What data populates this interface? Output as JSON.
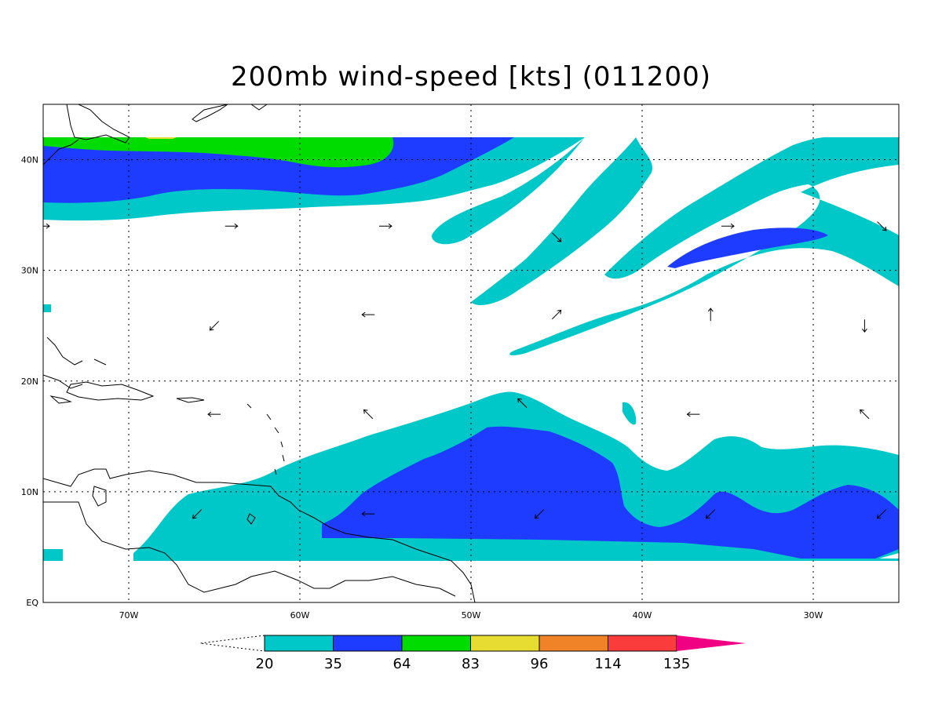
{
  "title": "200mb wind-speed [kts] (011200)",
  "map": {
    "lon_range": [
      -75,
      -25
    ],
    "lat_range": [
      0,
      45
    ],
    "x_ticks": [
      {
        "lon": -70,
        "label": "70W"
      },
      {
        "lon": -60,
        "label": "60W"
      },
      {
        "lon": -50,
        "label": "50W"
      },
      {
        "lon": -40,
        "label": "40W"
      },
      {
        "lon": -30,
        "label": "30W"
      }
    ],
    "y_ticks": [
      {
        "lat": 0,
        "label": "EQ"
      },
      {
        "lat": 10,
        "label": "10N"
      },
      {
        "lat": 20,
        "label": "20N"
      },
      {
        "lat": 30,
        "label": "30N"
      },
      {
        "lat": 40,
        "label": "40N"
      }
    ],
    "gridlines": "dotted",
    "colors": {
      "c20": "#00c8c8",
      "c35": "#1e3cff",
      "c64": "#00dc00",
      "c83": "#e6dc32",
      "c96": "#f08228",
      "c114": "#fa3c3c",
      "c135": "#f00082"
    }
  },
  "colorbar": {
    "levels": [
      "20",
      "35",
      "64",
      "83",
      "96",
      "114",
      "135"
    ],
    "colors": [
      "#00c8c8",
      "#1e3cff",
      "#00dc00",
      "#e6dc32",
      "#f08228",
      "#fa3c3c",
      "#f00082"
    ]
  },
  "wind_arrows": [
    {
      "lon": -75,
      "lat": 34,
      "dir": "east"
    },
    {
      "lon": -64,
      "lat": 34,
      "dir": "east"
    },
    {
      "lon": -55,
      "lat": 34,
      "dir": "east"
    },
    {
      "lon": -45,
      "lat": 33,
      "dir": "southeast"
    },
    {
      "lon": -35,
      "lat": 34,
      "dir": "east"
    },
    {
      "lon": -26,
      "lat": 34,
      "dir": "southeast"
    },
    {
      "lon": -65,
      "lat": 25,
      "dir": "southwest"
    },
    {
      "lon": -56,
      "lat": 26,
      "dir": "west"
    },
    {
      "lon": -45,
      "lat": 26,
      "dir": "northeast"
    },
    {
      "lon": -36,
      "lat": 26,
      "dir": "north"
    },
    {
      "lon": -27,
      "lat": 25,
      "dir": "south"
    },
    {
      "lon": -65,
      "lat": 17,
      "dir": "west"
    },
    {
      "lon": -56,
      "lat": 17,
      "dir": "northwest"
    },
    {
      "lon": -47,
      "lat": 18,
      "dir": "northwest"
    },
    {
      "lon": -37,
      "lat": 17,
      "dir": "west"
    },
    {
      "lon": -27,
      "lat": 17,
      "dir": "northwest"
    },
    {
      "lon": -66,
      "lat": 8,
      "dir": "southwest"
    },
    {
      "lon": -56,
      "lat": 8,
      "dir": "west"
    },
    {
      "lon": -46,
      "lat": 8,
      "dir": "southwest"
    },
    {
      "lon": -36,
      "lat": 8,
      "dir": "southwest"
    },
    {
      "lon": -26,
      "lat": 8,
      "dir": "southwest"
    }
  ]
}
